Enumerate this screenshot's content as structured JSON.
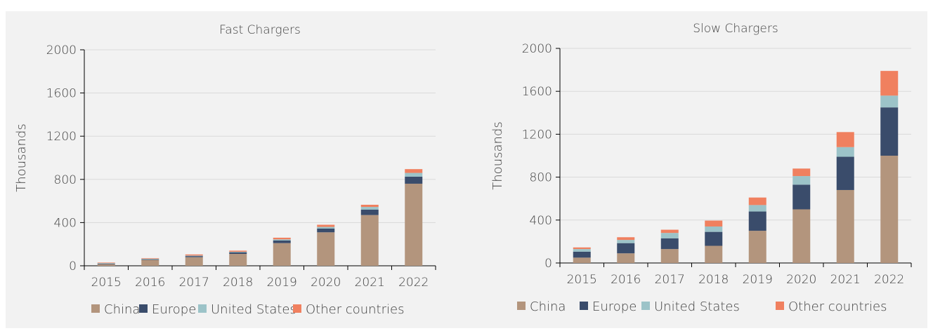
{
  "colors": {
    "China": "#b3957d",
    "Europe": "#3a4c6b",
    "United States": "#9cc3c8",
    "Other countries": "#f0805f"
  },
  "chart_data": [
    {
      "type": "bar",
      "stacked": true,
      "title": "Fast Chargers",
      "xlabel": "",
      "ylabel": "Thousands",
      "ylim": [
        0,
        2000
      ],
      "yticks": [
        "0",
        "400",
        "800",
        "1200",
        "1600",
        "2000"
      ],
      "grid": true,
      "legend": "bottom",
      "categories": [
        "2015",
        "2016",
        "2017",
        "2018",
        "2019",
        "2020",
        "2021",
        "2022"
      ],
      "series": [
        {
          "name": "China",
          "values": [
            15,
            55,
            80,
            110,
            210,
            310,
            470,
            760
          ]
        },
        {
          "name": "Europe",
          "values": [
            5,
            5,
            10,
            15,
            25,
            35,
            50,
            65
          ]
        },
        {
          "name": "United States",
          "values": [
            5,
            5,
            5,
            5,
            10,
            15,
            25,
            35
          ]
        },
        {
          "name": "Other countries",
          "values": [
            5,
            5,
            10,
            10,
            15,
            20,
            20,
            35
          ]
        }
      ]
    },
    {
      "type": "bar",
      "stacked": true,
      "title": "Slow Chargers",
      "xlabel": "",
      "ylabel": "Thousands",
      "ylim": [
        0,
        2000
      ],
      "yticks": [
        "0",
        "400",
        "800",
        "1200",
        "1600",
        "2000"
      ],
      "grid": true,
      "legend": "bottom",
      "categories": [
        "2015",
        "2016",
        "2017",
        "2018",
        "2019",
        "2020",
        "2021",
        "2022"
      ],
      "series": [
        {
          "name": "China",
          "values": [
            50,
            90,
            130,
            160,
            300,
            500,
            680,
            1000
          ]
        },
        {
          "name": "Europe",
          "values": [
            55,
            95,
            100,
            130,
            180,
            230,
            310,
            450
          ]
        },
        {
          "name": "United States",
          "values": [
            25,
            30,
            50,
            50,
            60,
            80,
            90,
            110
          ]
        },
        {
          "name": "Other countries",
          "values": [
            15,
            25,
            30,
            55,
            70,
            70,
            140,
            230
          ]
        }
      ]
    }
  ]
}
